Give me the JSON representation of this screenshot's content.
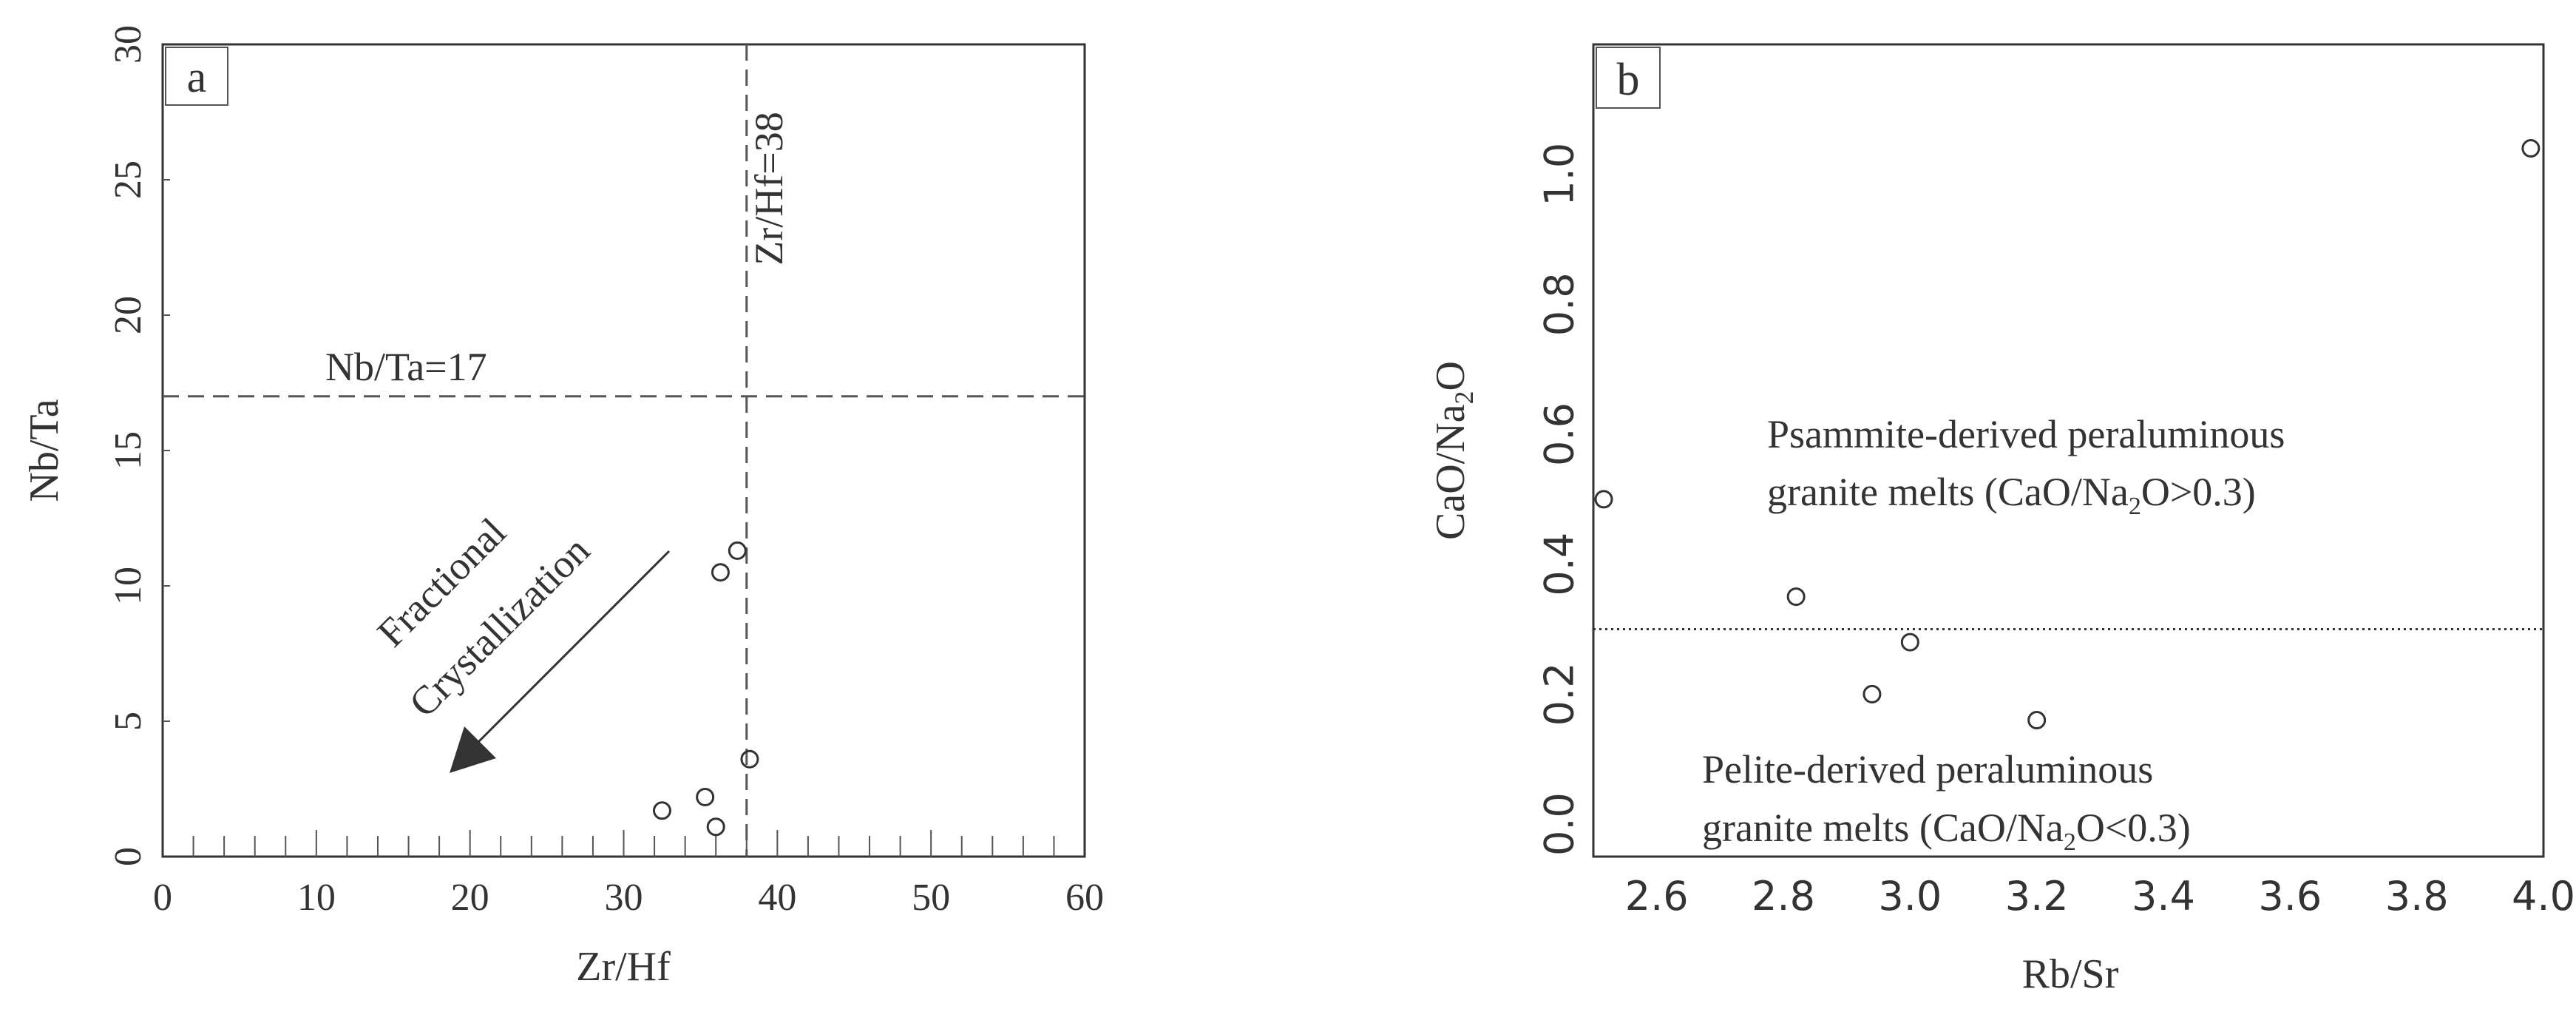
{
  "chart_data": [
    {
      "panel_label": "a",
      "type": "scatter",
      "xlabel": "Zr/Hf",
      "ylabel": "Nb/Ta",
      "xlim": [
        0,
        60
      ],
      "ylim": [
        0,
        30
      ],
      "xticks": [
        "0",
        "10",
        "20",
        "30",
        "40",
        "50",
        "60"
      ],
      "yticks": [
        "0",
        "5",
        "10",
        "15",
        "20",
        "25",
        "30"
      ],
      "points": [
        {
          "x": 32.5,
          "y": 1.7
        },
        {
          "x": 35.3,
          "y": 2.2
        },
        {
          "x": 36.0,
          "y": 1.1
        },
        {
          "x": 36.3,
          "y": 10.5
        },
        {
          "x": 37.4,
          "y": 11.3
        },
        {
          "x": 38.2,
          "y": 3.6
        }
      ],
      "reference_lines": [
        {
          "orientation": "vertical",
          "value": 38,
          "label": "Zr/Hf=38",
          "style": "dashed"
        },
        {
          "orientation": "horizontal",
          "value": 17,
          "label": "Nb/Ta=17",
          "style": "dashed"
        }
      ],
      "annotation": {
        "line1": "Fractional",
        "line2": "Crystallization",
        "arrow": "down-left"
      },
      "grid": false
    },
    {
      "panel_label": "b",
      "type": "scatter",
      "xlabel": "Rb/Sr",
      "ylabel_main": "CaO/Na",
      "ylabel_sub": "2",
      "ylabel_end": "O",
      "xlim": [
        2.5,
        4.0
      ],
      "ylim": [
        -0.05,
        1.2
      ],
      "xticks": [
        "2.6",
        "2.8",
        "3.0",
        "3.2",
        "3.4",
        "3.6",
        "3.8",
        "4.0"
      ],
      "yticks": [
        "0.0",
        "0.2",
        "0.4",
        "0.6",
        "0.8",
        "1.0"
      ],
      "points": [
        {
          "x": 2.5,
          "y": 0.5
        },
        {
          "x": 2.82,
          "y": 0.35
        },
        {
          "x": 2.94,
          "y": 0.2
        },
        {
          "x": 3.0,
          "y": 0.28
        },
        {
          "x": 3.2,
          "y": 0.16
        },
        {
          "x": 3.98,
          "y": 1.04
        }
      ],
      "reference_lines": [
        {
          "orientation": "horizontal",
          "value": 0.3,
          "style": "dotted"
        }
      ],
      "annotations": [
        {
          "line1": "Psammite-derived peraluminous",
          "line2_pre": "granite melts (CaO/Na",
          "line2_sub": "2",
          "line2_post": "O>0.3)"
        },
        {
          "line1": "Pelite-derived peraluminous",
          "line2_pre": "granite melts (CaO/Na",
          "line2_sub": "2",
          "line2_post": "O<0.3)"
        }
      ],
      "grid": false
    }
  ]
}
